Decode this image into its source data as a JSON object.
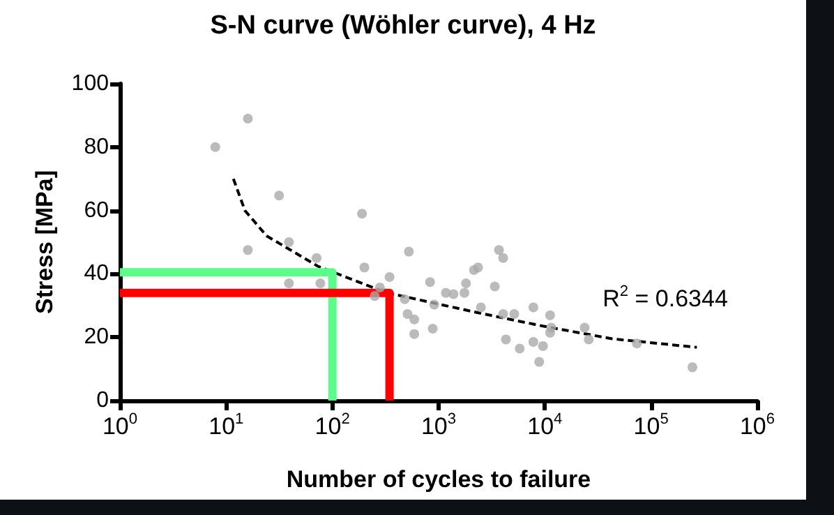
{
  "chart_data": {
    "type": "scatter",
    "title": "S-N curve (Wöhler curve), 4 Hz",
    "xlabel": "Number of cycles to failure",
    "ylabel": "Stress [MPa]",
    "log": "x",
    "xlim": [
      1,
      1000000
    ],
    "xticks": [
      {
        "value": 1,
        "label": "10$^{0}$"
      },
      {
        "value": 10,
        "label": "10$^{1}$"
      },
      {
        "value": 100,
        "label": "10$^{2}$"
      },
      {
        "value": 1000,
        "label": "10$^{3}$"
      },
      {
        "value": 10000,
        "label": "10$^{4}$"
      },
      {
        "value": 100000,
        "label": "10$^{5}$"
      },
      {
        "value": 1000000,
        "label": "10$^{6}$"
      }
    ],
    "ylim": [
      0,
      100
    ],
    "yticks": [
      0,
      20,
      40,
      60,
      80,
      100
    ],
    "grid": false,
    "annotations": [
      "R$^{2}$ = 0.6344"
    ],
    "series": [
      {
        "color": "#aaaaaa",
        "marker": "circle",
        "x": [
          7.9,
          16,
          16,
          31.5,
          39,
          39,
          71,
          77,
          190,
          200,
          250,
          280,
          345,
          525,
          510,
          590,
          590,
          830,
          880,
          910,
          480,
          1170,
          1380,
          1750,
          1810,
          2150,
          2350,
          2500,
          3380,
          3700,
          4050,
          4050,
          4300,
          5150,
          5800,
          7800,
          7800,
          8850,
          9600,
          11200,
          11200,
          11500,
          23700,
          25900,
          73500,
          245000
        ],
        "values": [
          80,
          89,
          47.5,
          64.7,
          50,
          37,
          45,
          37,
          59,
          42,
          33,
          35.7,
          39,
          47,
          27.3,
          25.6,
          21,
          37.4,
          22.7,
          30.3,
          32,
          34,
          33.6,
          34,
          37,
          41.2,
          42,
          29.4,
          36,
          47.5,
          45,
          27.3,
          19.3,
          27.3,
          16.4,
          29.4,
          18.5,
          12.2,
          17.2,
          26.9,
          21.4,
          23,
          23,
          19.3,
          18,
          10.5
        ]
      },
      {
        "type": "line",
        "color": "#000000",
        "line_style": "dashed",
        "marker": "none",
        "x": [
          11.7,
          15,
          24,
          73,
          325,
          480,
          2150,
          9600,
          43000,
          270000
        ],
        "values": [
          70,
          60,
          52,
          42.4,
          34,
          32.8,
          28,
          23.5,
          19.5,
          16.8
        ]
      },
      {
        "type": "line",
        "color": "#5dfc8a",
        "line_style": "solid",
        "marker": "none",
        "x": [
          1,
          100,
          100
        ],
        "values": [
          40.5,
          40.5,
          0
        ]
      },
      {
        "type": "line",
        "color": "#ff0000",
        "line_style": "solid",
        "marker": "none",
        "x": [
          1,
          345,
          345
        ],
        "values": [
          34,
          34,
          0
        ]
      }
    ]
  }
}
